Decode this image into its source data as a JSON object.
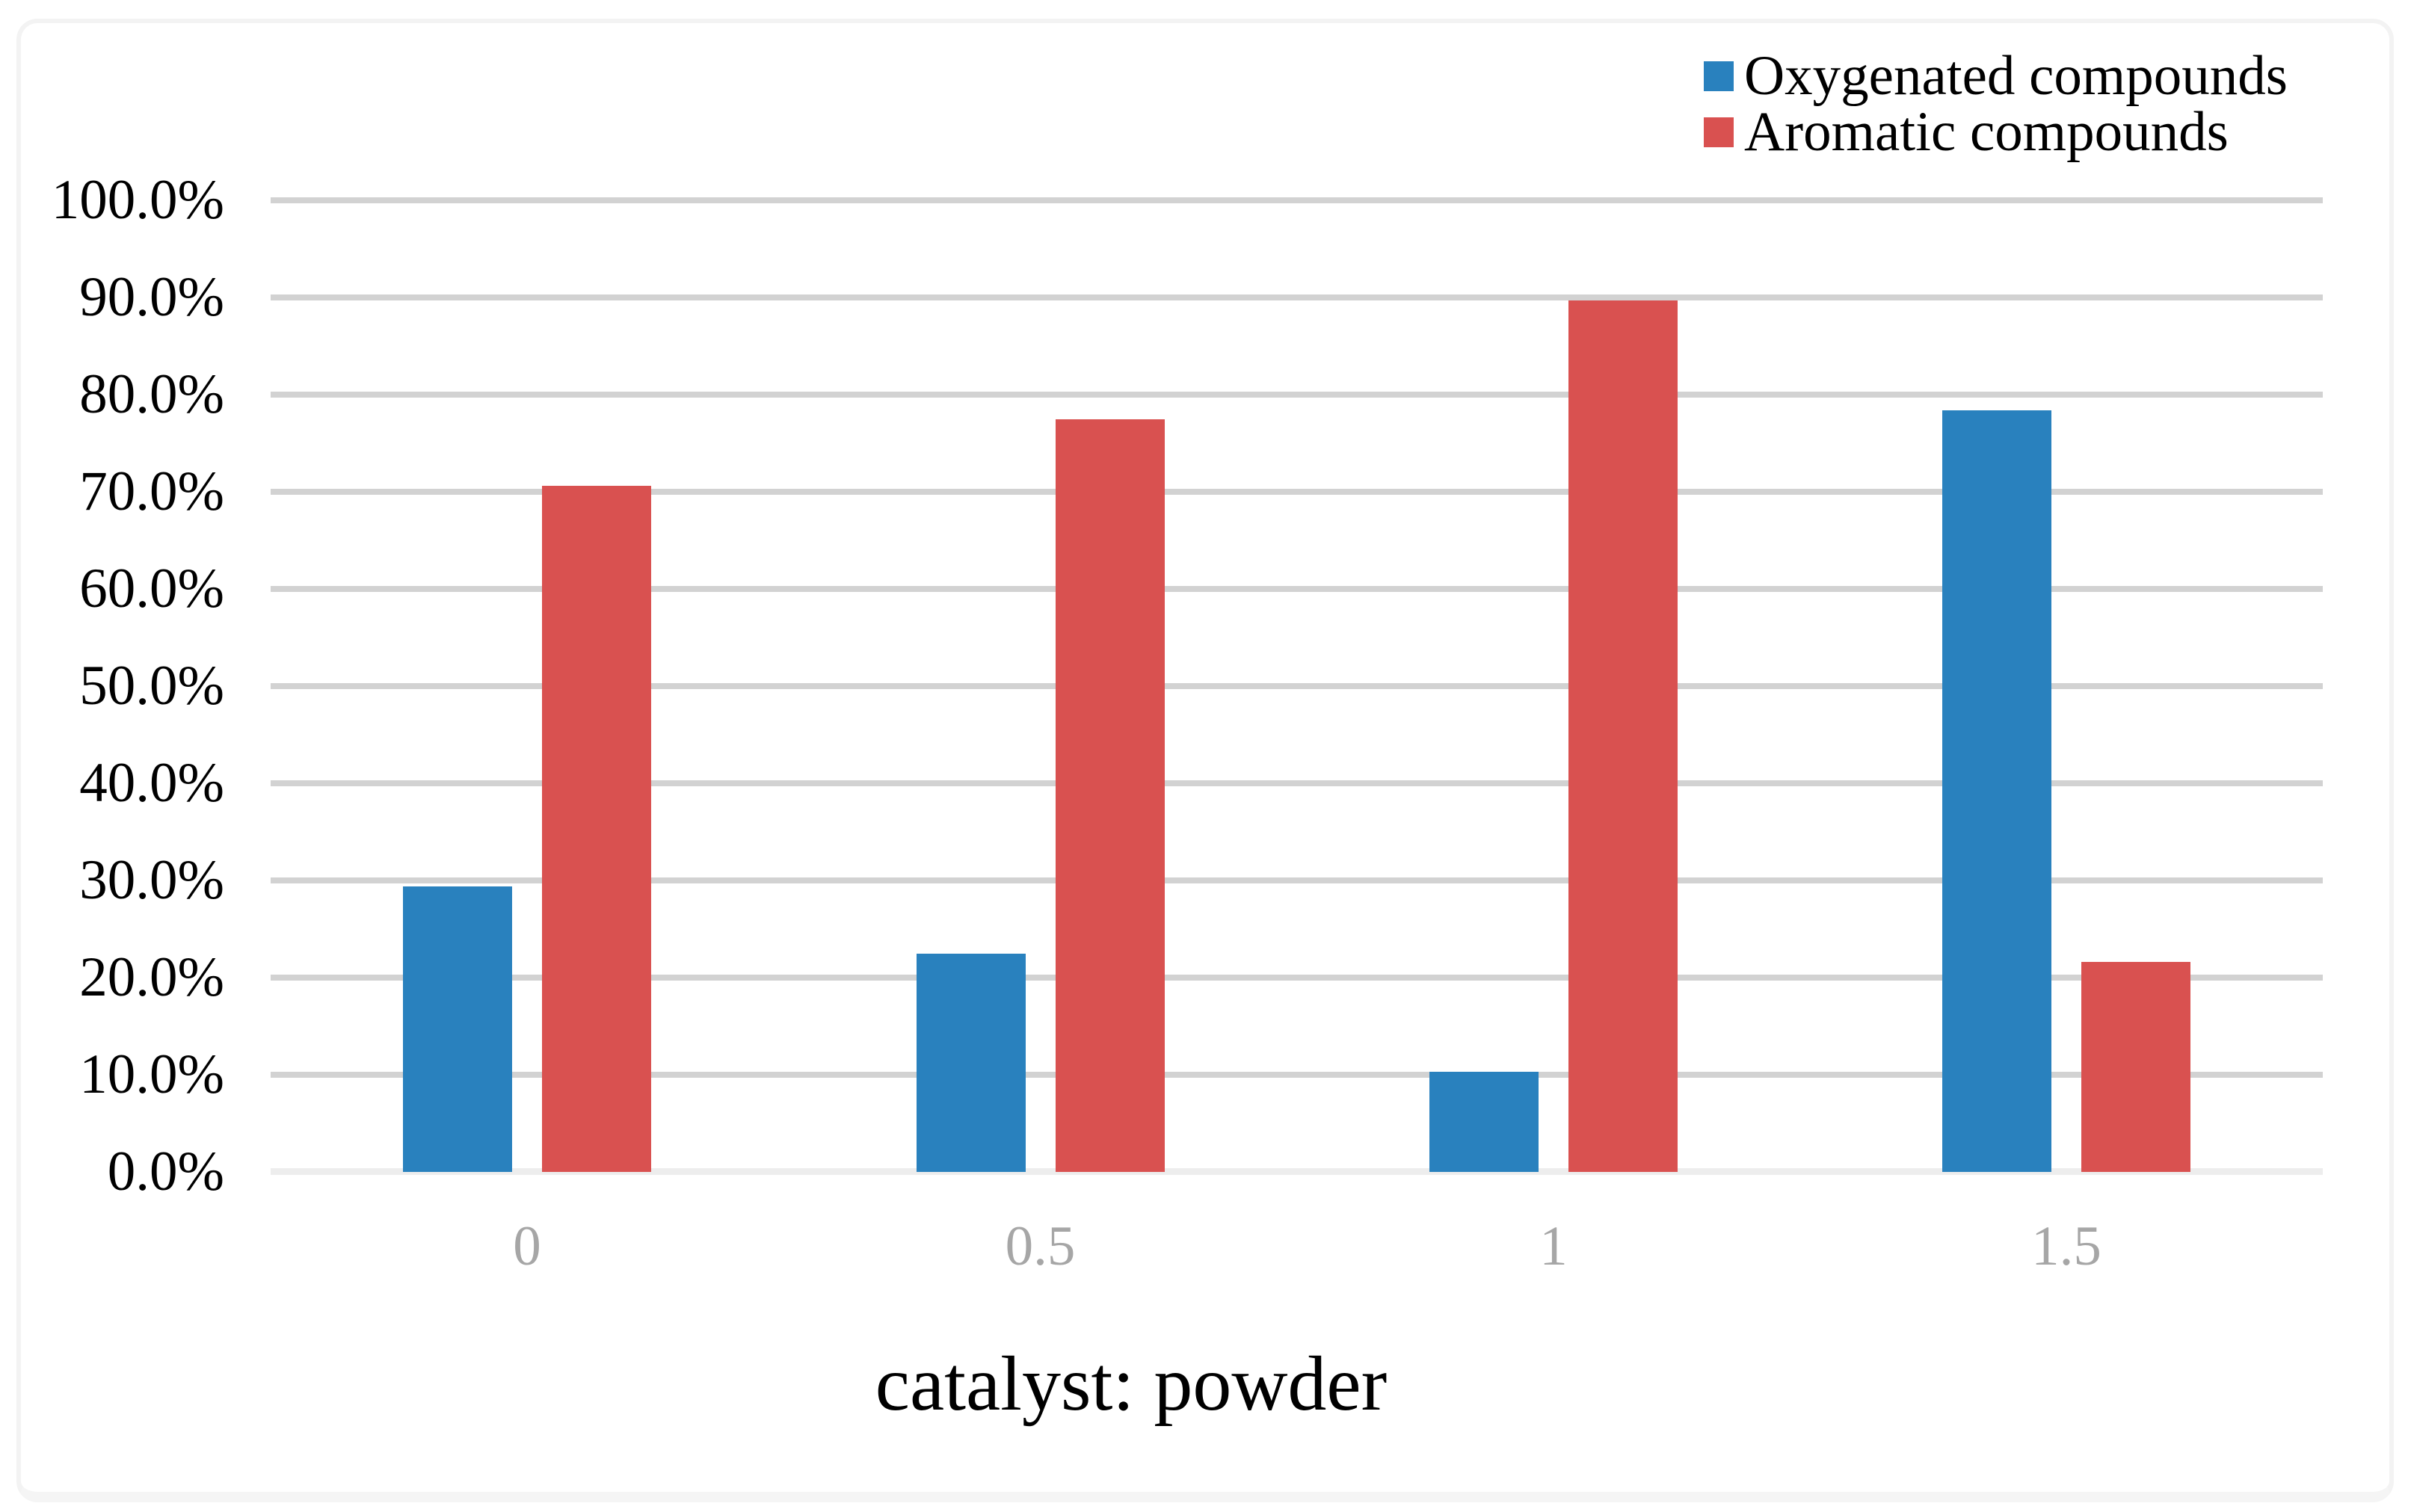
{
  "chart_data": {
    "type": "bar",
    "title": "",
    "xlabel": "catalyst: powder",
    "ylabel": "",
    "categories": [
      "0",
      "0.5",
      "1",
      "1.5"
    ],
    "series": [
      {
        "name": "Oxygenated compounds",
        "color": "#2981BE",
        "values": [
          29.4,
          22.5,
          10.3,
          78.4
        ]
      },
      {
        "name": "Aromatic compounds",
        "color": "#D95150",
        "values": [
          70.6,
          77.5,
          89.7,
          21.6
        ]
      }
    ],
    "ylim": [
      0,
      100
    ],
    "ytick_step": 10,
    "yticks": [
      "0.0%",
      "10.0%",
      "20.0%",
      "30.0%",
      "40.0%",
      "50.0%",
      "60.0%",
      "70.0%",
      "80.0%",
      "90.0%",
      "100.0%"
    ],
    "grid": true,
    "gridline_color": "#D2D2D2",
    "axis_line_color": "#EDEDED",
    "xtick_label_color": "#A6A6A6",
    "legend_position": "top-right"
  }
}
